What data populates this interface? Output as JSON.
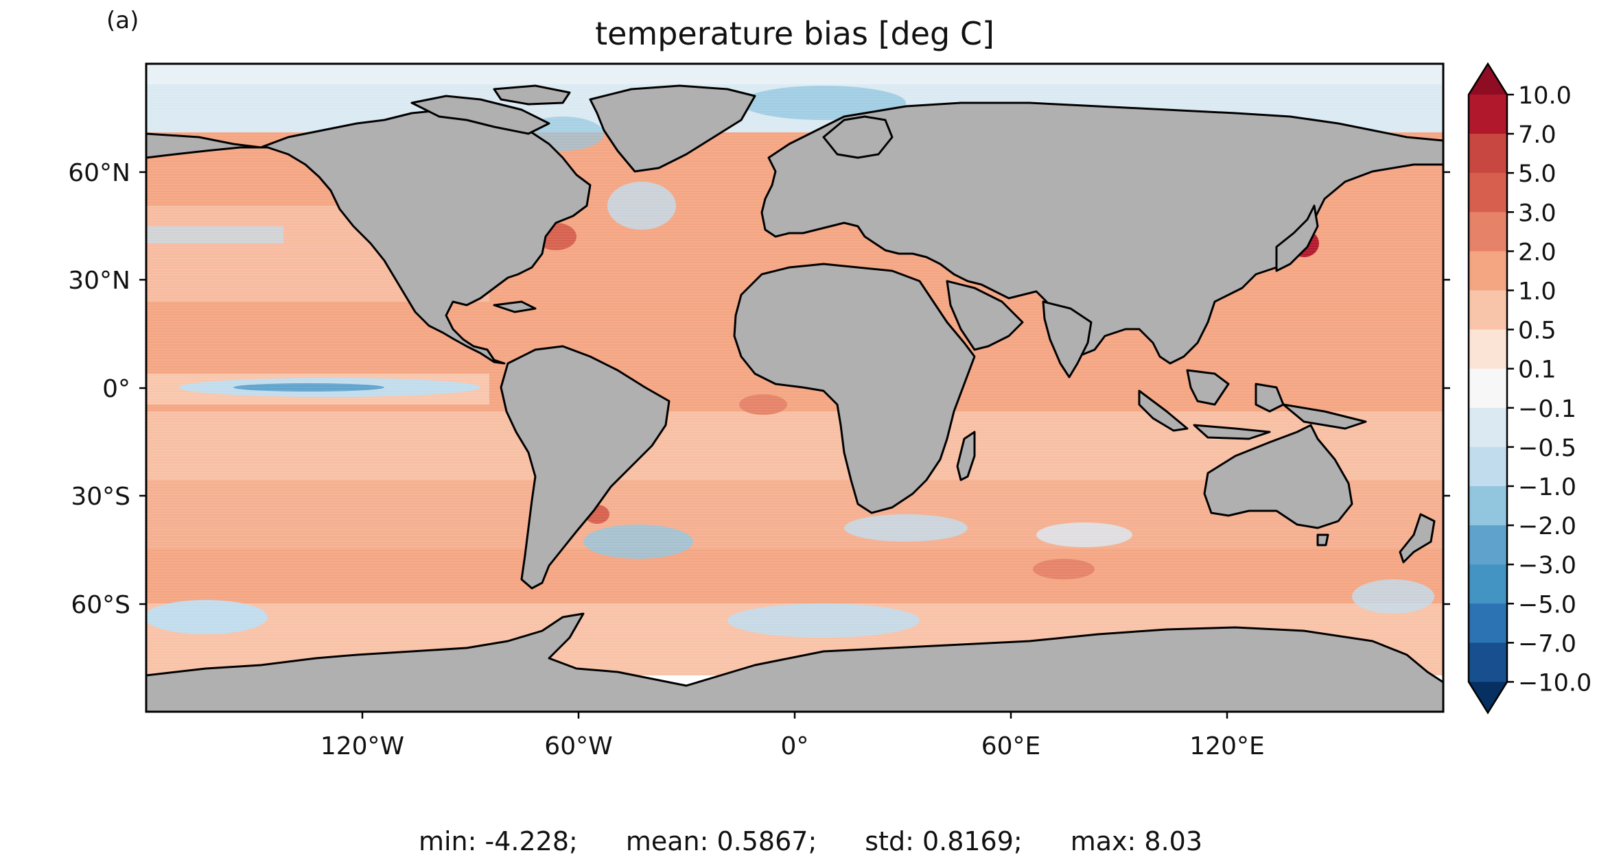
{
  "panel_label": "(a)",
  "title": "temperature bias [deg C]",
  "axes": {
    "lat_ticks": [
      "60°N",
      "30°N",
      "0°",
      "30°S",
      "60°S"
    ],
    "lon_ticks": [
      "120°W",
      "60°W",
      "0°",
      "60°E",
      "120°E"
    ]
  },
  "colorbar": {
    "labels": [
      "10.0",
      "7.0",
      "5.0",
      "3.0",
      "2.0",
      "1.0",
      "0.5",
      "0.1",
      "−0.1",
      "−0.5",
      "−1.0",
      "−2.0",
      "−3.0",
      "−5.0",
      "−7.0",
      "−10.0"
    ],
    "colors": [
      "#8e0d22",
      "#b2182b",
      "#c94741",
      "#d6604d",
      "#e58267",
      "#f4a582",
      "#f8c5ab",
      "#fbe3d6",
      "#f7f7f7",
      "#dae9f2",
      "#c1dced",
      "#92c5de",
      "#5fa3cc",
      "#4393c3",
      "#2b73b2",
      "#174f8f",
      "#053061"
    ]
  },
  "stats": {
    "min": "min: -4.228;",
    "mean": "mean: 0.5867;",
    "std": "std: 0.8169;",
    "max": "max: 8.03"
  },
  "colors": {
    "land": "#b0b0b0",
    "ocean_warm": "#f4a582",
    "ocean_cool": "#c1dced",
    "coast": "#000000"
  }
}
